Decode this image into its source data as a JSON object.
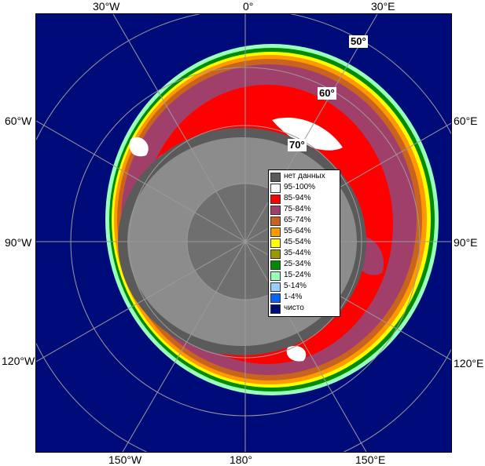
{
  "lon_labels": {
    "top_30w": "30°W",
    "top_0": "0°",
    "top_30e": "30°E",
    "left_60w": "60°W",
    "left_90w": "90°W",
    "left_120w": "120°W",
    "right_60e": "60°E",
    "right_90e": "90°E",
    "right_120e": "120°E",
    "bottom_150w": "150°W",
    "bottom_180": "180°",
    "bottom_150e": "150°E"
  },
  "lat_labels": {
    "lat_50": "50°",
    "lat_60": "60°",
    "lat_70": "70°"
  },
  "legend": [
    {
      "label": "нет данных",
      "color": "#5a5a5a"
    },
    {
      "label": "95-100%",
      "color": "#ffffff"
    },
    {
      "label": "85-94%",
      "color": "#ff0000"
    },
    {
      "label": "75-84%",
      "color": "#a0406a"
    },
    {
      "label": "65-74%",
      "color": "#c8641e"
    },
    {
      "label": "55-64%",
      "color": "#ff9900"
    },
    {
      "label": "45-54%",
      "color": "#ffff00"
    },
    {
      "label": "35-44%",
      "color": "#9a9a00"
    },
    {
      "label": "25-34%",
      "color": "#008c00"
    },
    {
      "label": "15-24%",
      "color": "#99ffbb"
    },
    {
      "label": "5-14%",
      "color": "#99ccff"
    },
    {
      "label": "1-4%",
      "color": "#0066ff"
    },
    {
      "label": "чисто",
      "color": "#000b7a"
    }
  ],
  "colors": {
    "ocean": "#000b7a",
    "land": "#8c8c8c",
    "no_data": "#5a5a5a",
    "grid": "#9a9a9a"
  }
}
